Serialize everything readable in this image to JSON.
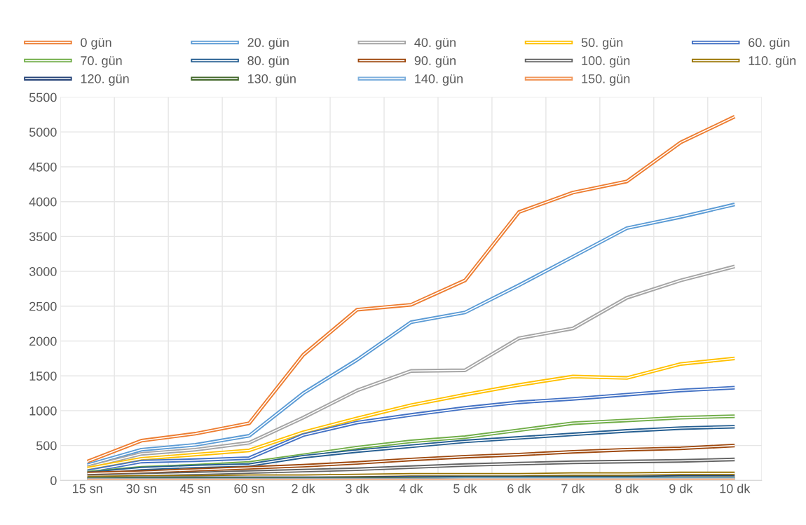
{
  "chart_data": {
    "type": "line",
    "categories": [
      "15 sn",
      "30 sn",
      "45 sn",
      "60 sn",
      "2 dk",
      "3 dk",
      "4 dk",
      "5 dk",
      "6 dk",
      "7 dk",
      "8 dk",
      "9 dk",
      "10 dk"
    ],
    "series": [
      {
        "name": "0 gün",
        "color": "#ed7d31",
        "values": [
          270,
          570,
          670,
          820,
          1800,
          2450,
          2520,
          2870,
          3850,
          4130,
          4290,
          4850,
          5220
        ]
      },
      {
        "name": "20. gün",
        "color": "#5b9bd5",
        "values": [
          220,
          440,
          510,
          640,
          1250,
          1730,
          2270,
          2410,
          2800,
          3210,
          3620,
          3780,
          3960
        ]
      },
      {
        "name": "40. gün",
        "color": "#a5a5a5",
        "values": [
          190,
          380,
          440,
          540,
          900,
          1290,
          1570,
          1580,
          2040,
          2180,
          2620,
          2870,
          3070
        ]
      },
      {
        "name": "50. gün",
        "color": "#ffc000",
        "values": [
          170,
          310,
          370,
          430,
          690,
          890,
          1080,
          1230,
          1370,
          1490,
          1470,
          1670,
          1750
        ]
      },
      {
        "name": "60. gün",
        "color": "#4472c4",
        "values": [
          130,
          270,
          290,
          320,
          650,
          830,
          940,
          1040,
          1120,
          1170,
          1230,
          1290,
          1330
        ]
      },
      {
        "name": "70. gün",
        "color": "#70ad47",
        "values": [
          110,
          180,
          210,
          250,
          360,
          470,
          560,
          620,
          720,
          820,
          860,
          900,
          920
        ]
      },
      {
        "name": "80. gün",
        "color": "#255e91",
        "values": [
          100,
          170,
          200,
          220,
          340,
          420,
          490,
          560,
          610,
          660,
          710,
          750,
          770
        ]
      },
      {
        "name": "90. gün",
        "color": "#9e480e",
        "values": [
          100,
          120,
          150,
          180,
          210,
          250,
          300,
          340,
          370,
          410,
          440,
          460,
          500
        ]
      },
      {
        "name": "100. gün",
        "color": "#636363",
        "values": [
          60,
          80,
          100,
          120,
          140,
          160,
          190,
          220,
          240,
          260,
          270,
          280,
          300
        ]
      },
      {
        "name": "110. gün",
        "color": "#997300",
        "values": [
          40,
          50,
          50,
          60,
          60,
          70,
          80,
          80,
          80,
          90,
          90,
          100,
          100
        ]
      },
      {
        "name": "120. gün",
        "color": "#264478",
        "values": [
          20,
          30,
          30,
          30,
          30,
          30,
          40,
          40,
          40,
          40,
          40,
          50,
          50
        ]
      },
      {
        "name": "130. gün",
        "color": "#43682b",
        "values": [
          20,
          20,
          20,
          20,
          20,
          20,
          20,
          30,
          30,
          30,
          30,
          30,
          30
        ]
      },
      {
        "name": "140. gün",
        "color": "#7cafdd",
        "values": [
          10,
          10,
          10,
          10,
          10,
          10,
          10,
          20,
          20,
          20,
          20,
          20,
          20
        ]
      },
      {
        "name": "150. gün",
        "color": "#f1975a",
        "values": [
          0,
          0,
          0,
          0,
          0,
          0,
          0,
          0,
          0,
          0,
          0,
          0,
          0
        ]
      }
    ],
    "ylim": [
      0,
      5500
    ],
    "yticks": [
      0,
      500,
      1000,
      1500,
      2000,
      2500,
      3000,
      3500,
      4000,
      4500,
      5000,
      5500
    ],
    "grid": true,
    "legend": "top",
    "marker": "none",
    "line_style": "solid"
  }
}
